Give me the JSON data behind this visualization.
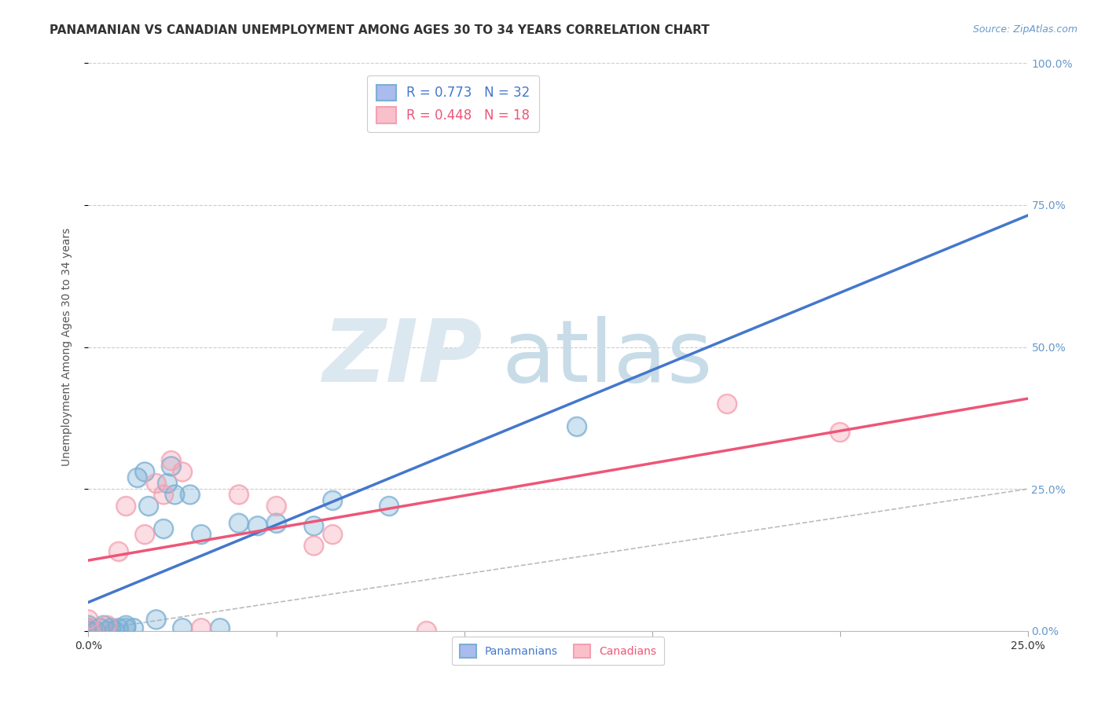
{
  "title": "PANAMANIAN VS CANADIAN UNEMPLOYMENT AMONG AGES 30 TO 34 YEARS CORRELATION CHART",
  "source": "Source: ZipAtlas.com",
  "ylabel": "Unemployment Among Ages 30 to 34 years",
  "xlim": [
    0.0,
    0.25
  ],
  "ylim": [
    0.0,
    1.0
  ],
  "xtick_labels": [
    "0.0%",
    "25.0%"
  ],
  "ytick_labels": [
    "0.0%",
    "25.0%",
    "50.0%",
    "75.0%",
    "100.0%"
  ],
  "ytick_positions": [
    0.0,
    0.25,
    0.5,
    0.75,
    1.0
  ],
  "xtick_positions": [
    0.0,
    0.25
  ],
  "extra_xticks": [
    0.05,
    0.1,
    0.15,
    0.2
  ],
  "background_color": "#ffffff",
  "panama_color": "#7bafd4",
  "canada_color": "#f4a0b0",
  "panama_line_color": "#4477cc",
  "canada_line_color": "#ee5577",
  "panama_R": "0.773",
  "panama_N": "32",
  "canada_R": "0.448",
  "canada_N": "18",
  "panama_scatter_x": [
    0.0,
    0.0,
    0.0,
    0.002,
    0.003,
    0.004,
    0.005,
    0.006,
    0.007,
    0.008,
    0.01,
    0.01,
    0.012,
    0.013,
    0.015,
    0.016,
    0.018,
    0.02,
    0.021,
    0.022,
    0.023,
    0.025,
    0.027,
    0.03,
    0.035,
    0.04,
    0.045,
    0.05,
    0.06,
    0.065,
    0.08,
    0.13
  ],
  "panama_scatter_y": [
    0.0,
    0.005,
    0.01,
    0.0,
    0.005,
    0.01,
    0.0,
    0.005,
    0.0,
    0.005,
    0.005,
    0.01,
    0.005,
    0.27,
    0.28,
    0.22,
    0.02,
    0.18,
    0.26,
    0.29,
    0.24,
    0.005,
    0.24,
    0.17,
    0.005,
    0.19,
    0.185,
    0.19,
    0.185,
    0.23,
    0.22,
    0.36
  ],
  "canada_scatter_x": [
    0.0,
    0.0,
    0.005,
    0.008,
    0.01,
    0.015,
    0.018,
    0.02,
    0.022,
    0.025,
    0.03,
    0.04,
    0.05,
    0.06,
    0.065,
    0.09,
    0.17,
    0.2
  ],
  "canada_scatter_y": [
    0.005,
    0.02,
    0.01,
    0.14,
    0.22,
    0.17,
    0.26,
    0.24,
    0.3,
    0.28,
    0.005,
    0.24,
    0.22,
    0.15,
    0.17,
    0.0,
    0.4,
    0.35
  ],
  "grid_color": "#cccccc",
  "title_color": "#333333",
  "axis_label_color": "#555555"
}
